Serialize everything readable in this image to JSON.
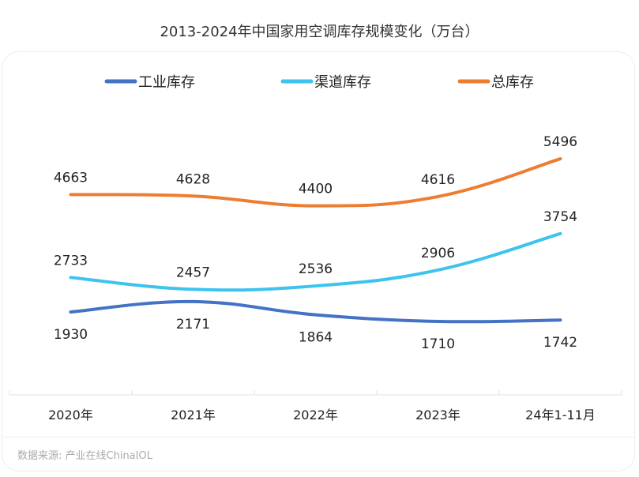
{
  "chart_data": {
    "type": "line",
    "title": "2013-2024年中国家用空调库存规模变化（万台）",
    "categories": [
      "2020年",
      "2021年",
      "2022年",
      "2023年",
      "24年1-11月"
    ],
    "series": [
      {
        "name": "工业库存",
        "color": "#4472c4",
        "values": [
          1930,
          2171,
          1864,
          1710,
          1742
        ]
      },
      {
        "name": "渠道库存",
        "color": "#3ec3ef",
        "values": [
          2733,
          2457,
          2536,
          2906,
          3754
        ]
      },
      {
        "name": "总库存",
        "color": "#ed7d31",
        "values": [
          4663,
          4628,
          4400,
          4616,
          5496
        ]
      }
    ],
    "ylim": [
      0,
      6600
    ],
    "grid": false,
    "legend_position": "top",
    "source": "数据来源: 产业在线ChinaIOL"
  }
}
